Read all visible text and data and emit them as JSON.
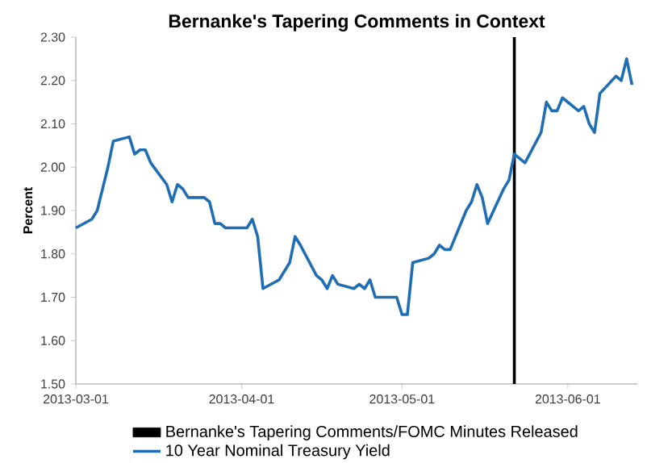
{
  "chart_data": {
    "type": "line",
    "title": "Bernanke's Tapering Comments in Context",
    "ylabel": "Percent",
    "x": [
      "2013-03-01",
      "2013-03-04",
      "2013-03-05",
      "2013-03-06",
      "2013-03-07",
      "2013-03-08",
      "2013-03-11",
      "2013-03-12",
      "2013-03-13",
      "2013-03-14",
      "2013-03-15",
      "2013-03-18",
      "2013-03-19",
      "2013-03-20",
      "2013-03-21",
      "2013-03-22",
      "2013-03-25",
      "2013-03-26",
      "2013-03-27",
      "2013-03-28",
      "2013-03-29",
      "2013-04-01",
      "2013-04-02",
      "2013-04-03",
      "2013-04-04",
      "2013-04-05",
      "2013-04-08",
      "2013-04-09",
      "2013-04-10",
      "2013-04-11",
      "2013-04-12",
      "2013-04-15",
      "2013-04-16",
      "2013-04-17",
      "2013-04-18",
      "2013-04-19",
      "2013-04-22",
      "2013-04-23",
      "2013-04-24",
      "2013-04-25",
      "2013-04-26",
      "2013-04-29",
      "2013-04-30",
      "2013-05-01",
      "2013-05-02",
      "2013-05-03",
      "2013-05-06",
      "2013-05-07",
      "2013-05-08",
      "2013-05-09",
      "2013-05-10",
      "2013-05-13",
      "2013-05-14",
      "2013-05-15",
      "2013-05-16",
      "2013-05-17",
      "2013-05-20",
      "2013-05-21",
      "2013-05-22",
      "2013-05-24",
      "2013-05-27",
      "2013-05-28",
      "2013-05-29",
      "2013-05-30",
      "2013-05-31",
      "2013-06-03",
      "2013-06-04",
      "2013-06-05",
      "2013-06-06",
      "2013-06-07",
      "2013-06-10",
      "2013-06-11",
      "2013-06-12",
      "2013-06-13"
    ],
    "series": [
      {
        "name": "10 Year Nominal Treasury Yield",
        "color": "#1f6db2",
        "values": [
          1.86,
          1.88,
          1.9,
          1.95,
          2.0,
          2.06,
          2.07,
          2.03,
          2.04,
          2.04,
          2.01,
          1.96,
          1.92,
          1.96,
          1.95,
          1.93,
          1.93,
          1.92,
          1.87,
          1.87,
          1.86,
          1.86,
          1.86,
          1.88,
          1.84,
          1.72,
          1.74,
          1.76,
          1.78,
          1.84,
          1.82,
          1.75,
          1.74,
          1.72,
          1.75,
          1.73,
          1.72,
          1.73,
          1.72,
          1.74,
          1.7,
          1.7,
          1.7,
          1.66,
          1.66,
          1.78,
          1.79,
          1.8,
          1.82,
          1.81,
          1.81,
          1.9,
          1.92,
          1.96,
          1.93,
          1.87,
          1.95,
          1.97,
          2.03,
          2.01,
          2.08,
          2.15,
          2.13,
          2.13,
          2.16,
          2.13,
          2.14,
          2.1,
          2.08,
          2.17,
          2.21,
          2.2,
          2.25,
          2.19
        ]
      }
    ],
    "xlim": [
      "2013-03-01",
      "2013-06-14"
    ],
    "xticks": [
      "2013-03-01",
      "2013-04-01",
      "2013-05-01",
      "2013-06-01"
    ],
    "ylim": [
      1.5,
      2.3
    ],
    "yticks": [
      {
        "value": 1.5,
        "label": "1.50"
      },
      {
        "value": 1.6,
        "label": "1.60"
      },
      {
        "value": 1.7,
        "label": "1.70"
      },
      {
        "value": 1.8,
        "label": "1.80"
      },
      {
        "value": 1.9,
        "label": "1.90"
      },
      {
        "value": 2.0,
        "label": "2.00"
      },
      {
        "value": 2.1,
        "label": "2.10"
      },
      {
        "value": 2.2,
        "label": "2.20"
      },
      {
        "value": 2.3,
        "label": "2.30"
      }
    ],
    "ref_lines": [
      {
        "axis": "x",
        "value": "2013-05-22",
        "label": "Bernanke's Tapering Comments/FOMC Minutes Released",
        "color": "#000000"
      }
    ],
    "legend": "bottom",
    "grid": false,
    "marker": "none",
    "line_style": "solid"
  }
}
